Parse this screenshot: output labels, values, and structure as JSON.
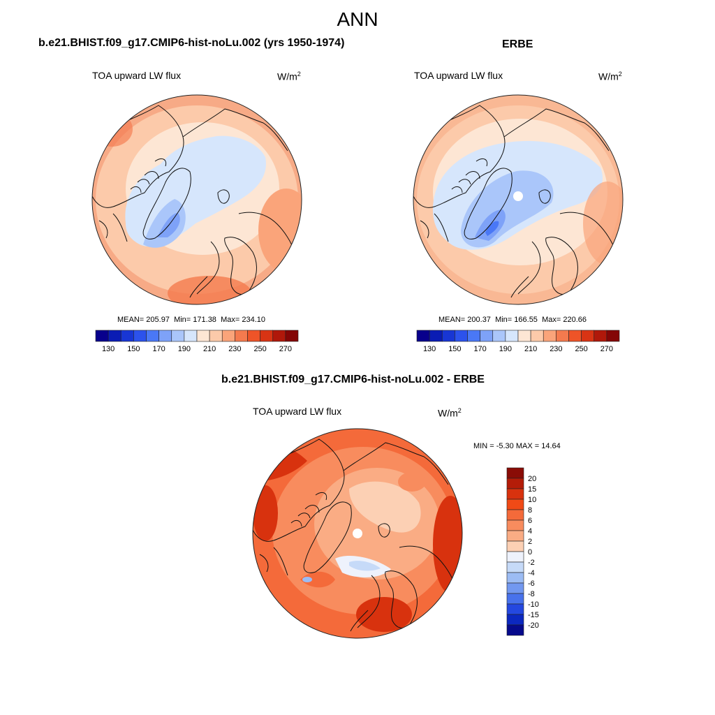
{
  "header": {
    "title": "ANN"
  },
  "panels": [
    {
      "title": "b.e21.BHIST.f09_g17.CMIP6-hist-noLu.002 (yrs 1950-1974)",
      "variable": "TOA upward LW flux",
      "units_base": "W/m",
      "units_exp": "2",
      "stats": {
        "mean_label": "MEAN=",
        "mean": "205.97",
        "min_label": "Min=",
        "min": "171.38",
        "max_label": "Max=",
        "max": "234.10"
      }
    },
    {
      "title": "ERBE",
      "variable": "TOA upward LW flux",
      "units_base": "W/m",
      "units_exp": "2",
      "stats": {
        "mean_label": "MEAN=",
        "mean": "200.37",
        "min_label": "Min=",
        "min": "166.55",
        "max_label": "Max=",
        "max": "220.66"
      }
    },
    {
      "title": "b.e21.BHIST.f09_g17.CMIP6-hist-noLu.002 - ERBE",
      "variable": "TOA upward LW flux",
      "units_base": "W/m",
      "units_exp": "2",
      "stats": {
        "min_label": "MIN =",
        "min": "-5.30",
        "max_label": "MAX =",
        "max": "14.64"
      }
    }
  ],
  "chart_data": [
    {
      "type": "heatmap",
      "projection": "north polar stereographic",
      "title": "b.e21.BHIST.f09_g17.CMIP6-hist-noLu.002 (yrs 1950-1974)",
      "variable": "TOA upward LW flux",
      "units": "W/m2",
      "mean": 205.97,
      "min": 171.38,
      "max": 234.1,
      "colorbar_ticks": [
        "130",
        "150",
        "170",
        "190",
        "210",
        "230",
        "250",
        "270"
      ],
      "colorbar_colors": [
        "#08008c",
        "#0a1cb4",
        "#1836d4",
        "#2c52ec",
        "#4a78f6",
        "#7ea2f8",
        "#aac6fa",
        "#d6e6fc",
        "#fde6d4",
        "#fccaaa",
        "#faa47a",
        "#f47a4e",
        "#ee5428",
        "#d83414",
        "#b0180a",
        "#840606"
      ]
    },
    {
      "type": "heatmap",
      "projection": "north polar stereographic",
      "title": "ERBE",
      "variable": "TOA upward LW flux",
      "units": "W/m2",
      "mean": 200.37,
      "min": 166.55,
      "max": 220.66,
      "colorbar_ticks": [
        "130",
        "150",
        "170",
        "190",
        "210",
        "230",
        "250",
        "270"
      ],
      "colorbar_colors": [
        "#08008c",
        "#0a1cb4",
        "#1836d4",
        "#2c52ec",
        "#4a78f6",
        "#7ea2f8",
        "#aac6fa",
        "#d6e6fc",
        "#fde6d4",
        "#fccaaa",
        "#faa47a",
        "#f47a4e",
        "#ee5428",
        "#d83414",
        "#b0180a",
        "#840606"
      ]
    },
    {
      "type": "heatmap",
      "projection": "north polar stereographic",
      "title": "b.e21.BHIST.f09_g17.CMIP6-hist-noLu.002 - ERBE",
      "variable": "TOA upward LW flux",
      "units": "W/m2",
      "min": -5.3,
      "max": 14.64,
      "colorbar_ticks": [
        "20",
        "15",
        "10",
        "8",
        "6",
        "4",
        "2",
        "0",
        "-2",
        "-4",
        "-6",
        "-8",
        "-10",
        "-15",
        "-20"
      ],
      "colorbar_colors": [
        "#8a0c06",
        "#b41c08",
        "#d8320e",
        "#f04a16",
        "#f46a3a",
        "#f88c5e",
        "#faac84",
        "#fcd0b4",
        "#eef2fc",
        "#c6daf8",
        "#9cbcf4",
        "#7298f0",
        "#4872ec",
        "#2448e0",
        "#0c28c0",
        "#060a8c"
      ]
    }
  ]
}
